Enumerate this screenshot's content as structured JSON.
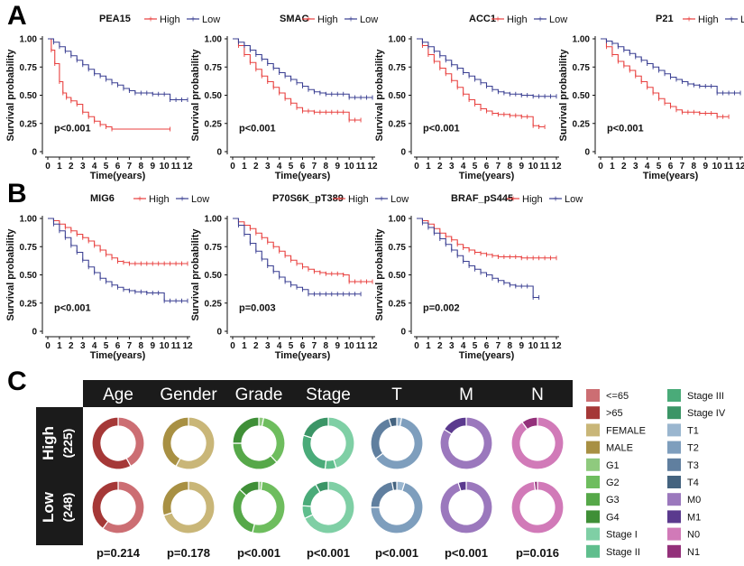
{
  "panels": {
    "a": "A",
    "b": "B",
    "c": "C"
  },
  "colors": {
    "high": "#e8403f",
    "low": "#3a3f92"
  },
  "km_common": {
    "ylabel": "Survival probability",
    "xlabel": "Time(years)",
    "y_ticks": [
      "0",
      "0.25",
      "0.50",
      "0.75",
      "1.00"
    ],
    "x_ticks": [
      "0",
      "1",
      "2",
      "3",
      "4",
      "5",
      "6",
      "7",
      "8",
      "9",
      "10",
      "11",
      "12"
    ],
    "legend_high": "High",
    "legend_low": "Low"
  },
  "chart_data": [
    {
      "type": "line",
      "title": "PEA15",
      "pvalue": "p<0.001",
      "xlim": [
        0,
        12
      ],
      "ylim": [
        0,
        1
      ],
      "series": [
        {
          "name": "High",
          "x": [
            0,
            0.3,
            0.6,
            1,
            1.3,
            1.6,
            2,
            2.5,
            3,
            3.5,
            4,
            4.5,
            5,
            5.5,
            10.5
          ],
          "y": [
            1,
            0.9,
            0.78,
            0.62,
            0.52,
            0.48,
            0.45,
            0.42,
            0.35,
            0.31,
            0.27,
            0.24,
            0.22,
            0.2,
            0.2
          ]
        },
        {
          "name": "Low",
          "x": [
            0,
            0.5,
            1,
            1.5,
            2,
            2.5,
            3,
            3.5,
            4,
            4.5,
            5,
            5.5,
            6,
            6.5,
            7,
            7.5,
            8,
            8.5,
            9,
            9.5,
            10,
            10.5,
            11,
            11.5,
            12
          ],
          "y": [
            1,
            0.97,
            0.93,
            0.89,
            0.85,
            0.81,
            0.77,
            0.73,
            0.69,
            0.67,
            0.64,
            0.61,
            0.59,
            0.56,
            0.54,
            0.52,
            0.52,
            0.52,
            0.51,
            0.51,
            0.51,
            0.46,
            0.46,
            0.46,
            0.46
          ]
        }
      ]
    },
    {
      "type": "line",
      "title": "SMAC",
      "pvalue": "p<0.001",
      "xlim": [
        0,
        12
      ],
      "ylim": [
        0,
        1
      ],
      "series": [
        {
          "name": "High",
          "x": [
            0,
            0.5,
            1,
            1.5,
            2,
            2.5,
            3,
            3.5,
            4,
            4.5,
            5,
            5.5,
            6,
            6.5,
            7,
            7.5,
            8,
            8.5,
            9,
            9.5,
            10,
            10.5,
            11
          ],
          "y": [
            1,
            0.94,
            0.86,
            0.79,
            0.73,
            0.67,
            0.62,
            0.57,
            0.52,
            0.47,
            0.43,
            0.39,
            0.36,
            0.36,
            0.35,
            0.35,
            0.35,
            0.35,
            0.35,
            0.35,
            0.28,
            0.28,
            0.28
          ]
        },
        {
          "name": "Low",
          "x": [
            0,
            0.5,
            1,
            1.5,
            2,
            2.5,
            3,
            3.5,
            4,
            4.5,
            5,
            5.5,
            6,
            6.5,
            7,
            7.5,
            8,
            8.5,
            9,
            9.5,
            10,
            10.5,
            11,
            11.5,
            12
          ],
          "y": [
            1,
            0.97,
            0.94,
            0.9,
            0.86,
            0.82,
            0.78,
            0.74,
            0.7,
            0.67,
            0.64,
            0.61,
            0.58,
            0.55,
            0.53,
            0.52,
            0.51,
            0.51,
            0.51,
            0.51,
            0.48,
            0.48,
            0.48,
            0.48,
            0.48
          ]
        }
      ]
    },
    {
      "type": "line",
      "title": "ACC1",
      "pvalue": "p<0.001",
      "xlim": [
        0,
        12
      ],
      "ylim": [
        0,
        1
      ],
      "series": [
        {
          "name": "High",
          "x": [
            0,
            0.5,
            1,
            1.5,
            2,
            2.5,
            3,
            3.5,
            4,
            4.5,
            5,
            5.5,
            6,
            6.5,
            7,
            7.5,
            8,
            8.5,
            9,
            9.5,
            10,
            10.5,
            11
          ],
          "y": [
            1,
            0.94,
            0.86,
            0.8,
            0.74,
            0.69,
            0.63,
            0.57,
            0.51,
            0.46,
            0.42,
            0.38,
            0.36,
            0.34,
            0.33,
            0.33,
            0.32,
            0.32,
            0.31,
            0.31,
            0.23,
            0.22,
            0.22
          ]
        },
        {
          "name": "Low",
          "x": [
            0,
            0.5,
            1,
            1.5,
            2,
            2.5,
            3,
            3.5,
            4,
            4.5,
            5,
            5.5,
            6,
            6.5,
            7,
            7.5,
            8,
            8.5,
            9,
            9.5,
            10,
            10.5,
            11,
            11.5,
            12
          ],
          "y": [
            1,
            0.97,
            0.93,
            0.89,
            0.85,
            0.81,
            0.77,
            0.74,
            0.7,
            0.67,
            0.64,
            0.61,
            0.58,
            0.55,
            0.53,
            0.52,
            0.51,
            0.51,
            0.5,
            0.5,
            0.49,
            0.49,
            0.49,
            0.49,
            0.49
          ]
        }
      ]
    },
    {
      "type": "line",
      "title": "P21",
      "pvalue": "p<0.001",
      "xlim": [
        0,
        12
      ],
      "ylim": [
        0,
        1
      ],
      "series": [
        {
          "name": "High",
          "x": [
            0,
            0.5,
            1,
            1.5,
            2,
            2.5,
            3,
            3.5,
            4,
            4.5,
            5,
            5.5,
            6,
            6.5,
            7,
            7.5,
            8,
            8.5,
            9,
            9.5,
            10,
            10.5,
            11
          ],
          "y": [
            1,
            0.93,
            0.86,
            0.8,
            0.76,
            0.72,
            0.67,
            0.62,
            0.57,
            0.52,
            0.47,
            0.43,
            0.4,
            0.37,
            0.35,
            0.35,
            0.35,
            0.34,
            0.34,
            0.34,
            0.31,
            0.31,
            0.31
          ]
        },
        {
          "name": "Low",
          "x": [
            0,
            0.5,
            1,
            1.5,
            2,
            2.5,
            3,
            3.5,
            4,
            4.5,
            5,
            5.5,
            6,
            6.5,
            7,
            7.5,
            8,
            8.5,
            9,
            9.5,
            10,
            10.5,
            11,
            11.5,
            12
          ],
          "y": [
            1,
            0.98,
            0.96,
            0.93,
            0.9,
            0.87,
            0.84,
            0.81,
            0.78,
            0.75,
            0.72,
            0.69,
            0.66,
            0.64,
            0.62,
            0.6,
            0.59,
            0.58,
            0.58,
            0.58,
            0.52,
            0.52,
            0.52,
            0.52,
            0.52
          ]
        }
      ]
    },
    {
      "type": "line",
      "title": "MIG6",
      "pvalue": "p<0.001",
      "xlim": [
        0,
        12
      ],
      "ylim": [
        0,
        1
      ],
      "series": [
        {
          "name": "High",
          "x": [
            0,
            0.5,
            1,
            1.5,
            2,
            2.5,
            3,
            3.5,
            4,
            4.5,
            5,
            5.5,
            6,
            6.5,
            7,
            7.5,
            8,
            8.5,
            9,
            9.5,
            10,
            10.5,
            11,
            11.5,
            12
          ],
          "y": [
            1,
            0.98,
            0.95,
            0.92,
            0.89,
            0.86,
            0.83,
            0.8,
            0.76,
            0.72,
            0.68,
            0.65,
            0.62,
            0.61,
            0.6,
            0.6,
            0.6,
            0.6,
            0.6,
            0.6,
            0.6,
            0.6,
            0.6,
            0.6,
            0.6
          ]
        },
        {
          "name": "Low",
          "x": [
            0,
            0.5,
            1,
            1.5,
            2,
            2.5,
            3,
            3.5,
            4,
            4.5,
            5,
            5.5,
            6,
            6.5,
            7,
            7.5,
            8,
            8.5,
            9,
            9.5,
            10,
            10.5,
            11,
            11.5,
            12
          ],
          "y": [
            1,
            0.95,
            0.89,
            0.83,
            0.76,
            0.7,
            0.63,
            0.57,
            0.52,
            0.47,
            0.44,
            0.41,
            0.39,
            0.37,
            0.36,
            0.35,
            0.35,
            0.34,
            0.34,
            0.34,
            0.27,
            0.27,
            0.27,
            0.27,
            0.27
          ]
        }
      ]
    },
    {
      "type": "line",
      "title": "P70S6K_pT389",
      "pvalue": "p=0.003",
      "xlim": [
        0,
        12
      ],
      "ylim": [
        0,
        1
      ],
      "series": [
        {
          "name": "High",
          "x": [
            0,
            0.5,
            1,
            1.5,
            2,
            2.5,
            3,
            3.5,
            4,
            4.5,
            5,
            5.5,
            6,
            6.5,
            7,
            7.5,
            8,
            8.5,
            9,
            9.5,
            10,
            10.5,
            11,
            11.5,
            12
          ],
          "y": [
            1,
            0.97,
            0.94,
            0.91,
            0.87,
            0.83,
            0.79,
            0.75,
            0.71,
            0.67,
            0.63,
            0.6,
            0.57,
            0.55,
            0.53,
            0.52,
            0.51,
            0.51,
            0.51,
            0.5,
            0.44,
            0.44,
            0.44,
            0.44,
            0.44
          ]
        },
        {
          "name": "Low",
          "x": [
            0,
            0.5,
            1,
            1.5,
            2,
            2.5,
            3,
            3.5,
            4,
            4.5,
            5,
            5.5,
            6,
            6.5,
            7,
            7.5,
            8,
            8.5,
            9,
            9.5,
            10,
            10.5,
            11
          ],
          "y": [
            1,
            0.94,
            0.86,
            0.78,
            0.71,
            0.64,
            0.58,
            0.53,
            0.48,
            0.44,
            0.41,
            0.39,
            0.37,
            0.33,
            0.33,
            0.33,
            0.33,
            0.33,
            0.33,
            0.33,
            0.33,
            0.33,
            0.33
          ]
        }
      ]
    },
    {
      "type": "line",
      "title": "BRAF_pS445",
      "pvalue": "p=0.002",
      "xlim": [
        0,
        12
      ],
      "ylim": [
        0,
        1
      ],
      "series": [
        {
          "name": "High",
          "x": [
            0,
            0.5,
            1,
            1.5,
            2,
            2.5,
            3,
            3.5,
            4,
            4.5,
            5,
            5.5,
            6,
            6.5,
            7,
            7.5,
            8,
            8.5,
            9,
            9.5,
            10,
            10.5,
            11,
            11.5,
            12
          ],
          "y": [
            1,
            0.98,
            0.95,
            0.91,
            0.87,
            0.84,
            0.81,
            0.77,
            0.74,
            0.72,
            0.7,
            0.69,
            0.68,
            0.67,
            0.66,
            0.66,
            0.66,
            0.66,
            0.65,
            0.65,
            0.65,
            0.65,
            0.65,
            0.65,
            0.65
          ]
        },
        {
          "name": "Low",
          "x": [
            0,
            0.5,
            1,
            1.5,
            2,
            2.5,
            3,
            3.5,
            4,
            4.5,
            5,
            5.5,
            6,
            6.5,
            7,
            7.5,
            8,
            8.5,
            9,
            9.5,
            10,
            10.5
          ],
          "y": [
            1,
            0.96,
            0.92,
            0.87,
            0.82,
            0.77,
            0.72,
            0.67,
            0.62,
            0.58,
            0.55,
            0.52,
            0.5,
            0.47,
            0.45,
            0.43,
            0.41,
            0.4,
            0.4,
            0.4,
            0.3,
            0.3
          ]
        }
      ]
    },
    {
      "type": "pie",
      "variant": "donut",
      "columns": [
        "Age",
        "Gender",
        "Grade",
        "Stage",
        "T",
        "M",
        "N"
      ],
      "rows": [
        {
          "label": "High",
          "count": "(225)"
        },
        {
          "label": "Low",
          "count": "(248)"
        }
      ],
      "pvalues": [
        "p=0.214",
        "p=0.178",
        "p<0.001",
        "p<0.001",
        "p<0.001",
        "p<0.001",
        "p=0.016"
      ],
      "values": {
        "High": {
          "Age": [
            0.42,
            0.58
          ],
          "Gender": [
            0.58,
            0.42
          ],
          "Grade": [
            0.03,
            0.35,
            0.37,
            0.25
          ],
          "Stage": [
            0.45,
            0.07,
            0.28,
            0.2
          ],
          "T": [
            0.03,
            0.62,
            0.3,
            0.05
          ],
          "M": [
            0.84,
            0.16
          ],
          "N": [
            0.9,
            0.1
          ]
        },
        "Low": {
          "Age": [
            0.6,
            0.4
          ],
          "Gender": [
            0.7,
            0.3
          ],
          "Grade": [
            0.02,
            0.52,
            0.33,
            0.13
          ],
          "Stage": [
            0.68,
            0.08,
            0.16,
            0.08
          ],
          "T": [
            0.05,
            0.7,
            0.22,
            0.03
          ],
          "M": [
            0.95,
            0.05
          ],
          "N": [
            0.98,
            0.02
          ]
        }
      },
      "category_keys": {
        "Age": [
          "<=65",
          ">65"
        ],
        "Gender": [
          "FEMALE",
          "MALE"
        ],
        "Grade": [
          "G1",
          "G2",
          "G3",
          "G4"
        ],
        "Stage": [
          "Stage I",
          "Stage II",
          "Stage III",
          "Stage IV"
        ],
        "T": [
          "T1",
          "T2",
          "T3",
          "T4"
        ],
        "M": [
          "M0",
          "M1"
        ],
        "N": [
          "N0",
          "N1"
        ]
      }
    }
  ],
  "key_legend": [
    {
      "label": "<=65",
      "color": "#cc6e73"
    },
    {
      "label": ">65",
      "color": "#a53837"
    },
    {
      "label": "FEMALE",
      "color": "#c9b678"
    },
    {
      "label": "MALE",
      "color": "#a89043"
    },
    {
      "label": "G1",
      "color": "#8fca7e"
    },
    {
      "label": "G2",
      "color": "#6ebd5e"
    },
    {
      "label": "G3",
      "color": "#56a849"
    },
    {
      "label": "G4",
      "color": "#3f8f37"
    },
    {
      "label": "Stage I",
      "color": "#7fcfa5"
    },
    {
      "label": "Stage II",
      "color": "#5fbe8d"
    },
    {
      "label": "Stage III",
      "color": "#4aab79"
    },
    {
      "label": "Stage IV",
      "color": "#3b9566"
    },
    {
      "label": "T1",
      "color": "#9ab6cf"
    },
    {
      "label": "T2",
      "color": "#7e9ebd"
    },
    {
      "label": "T3",
      "color": "#607f9f"
    },
    {
      "label": "T4",
      "color": "#44637f"
    },
    {
      "label": "M0",
      "color": "#9b78bd"
    },
    {
      "label": "M1",
      "color": "#5b3a8e"
    },
    {
      "label": "N0",
      "color": "#d17ab8"
    },
    {
      "label": "N1",
      "color": "#93307a"
    }
  ]
}
